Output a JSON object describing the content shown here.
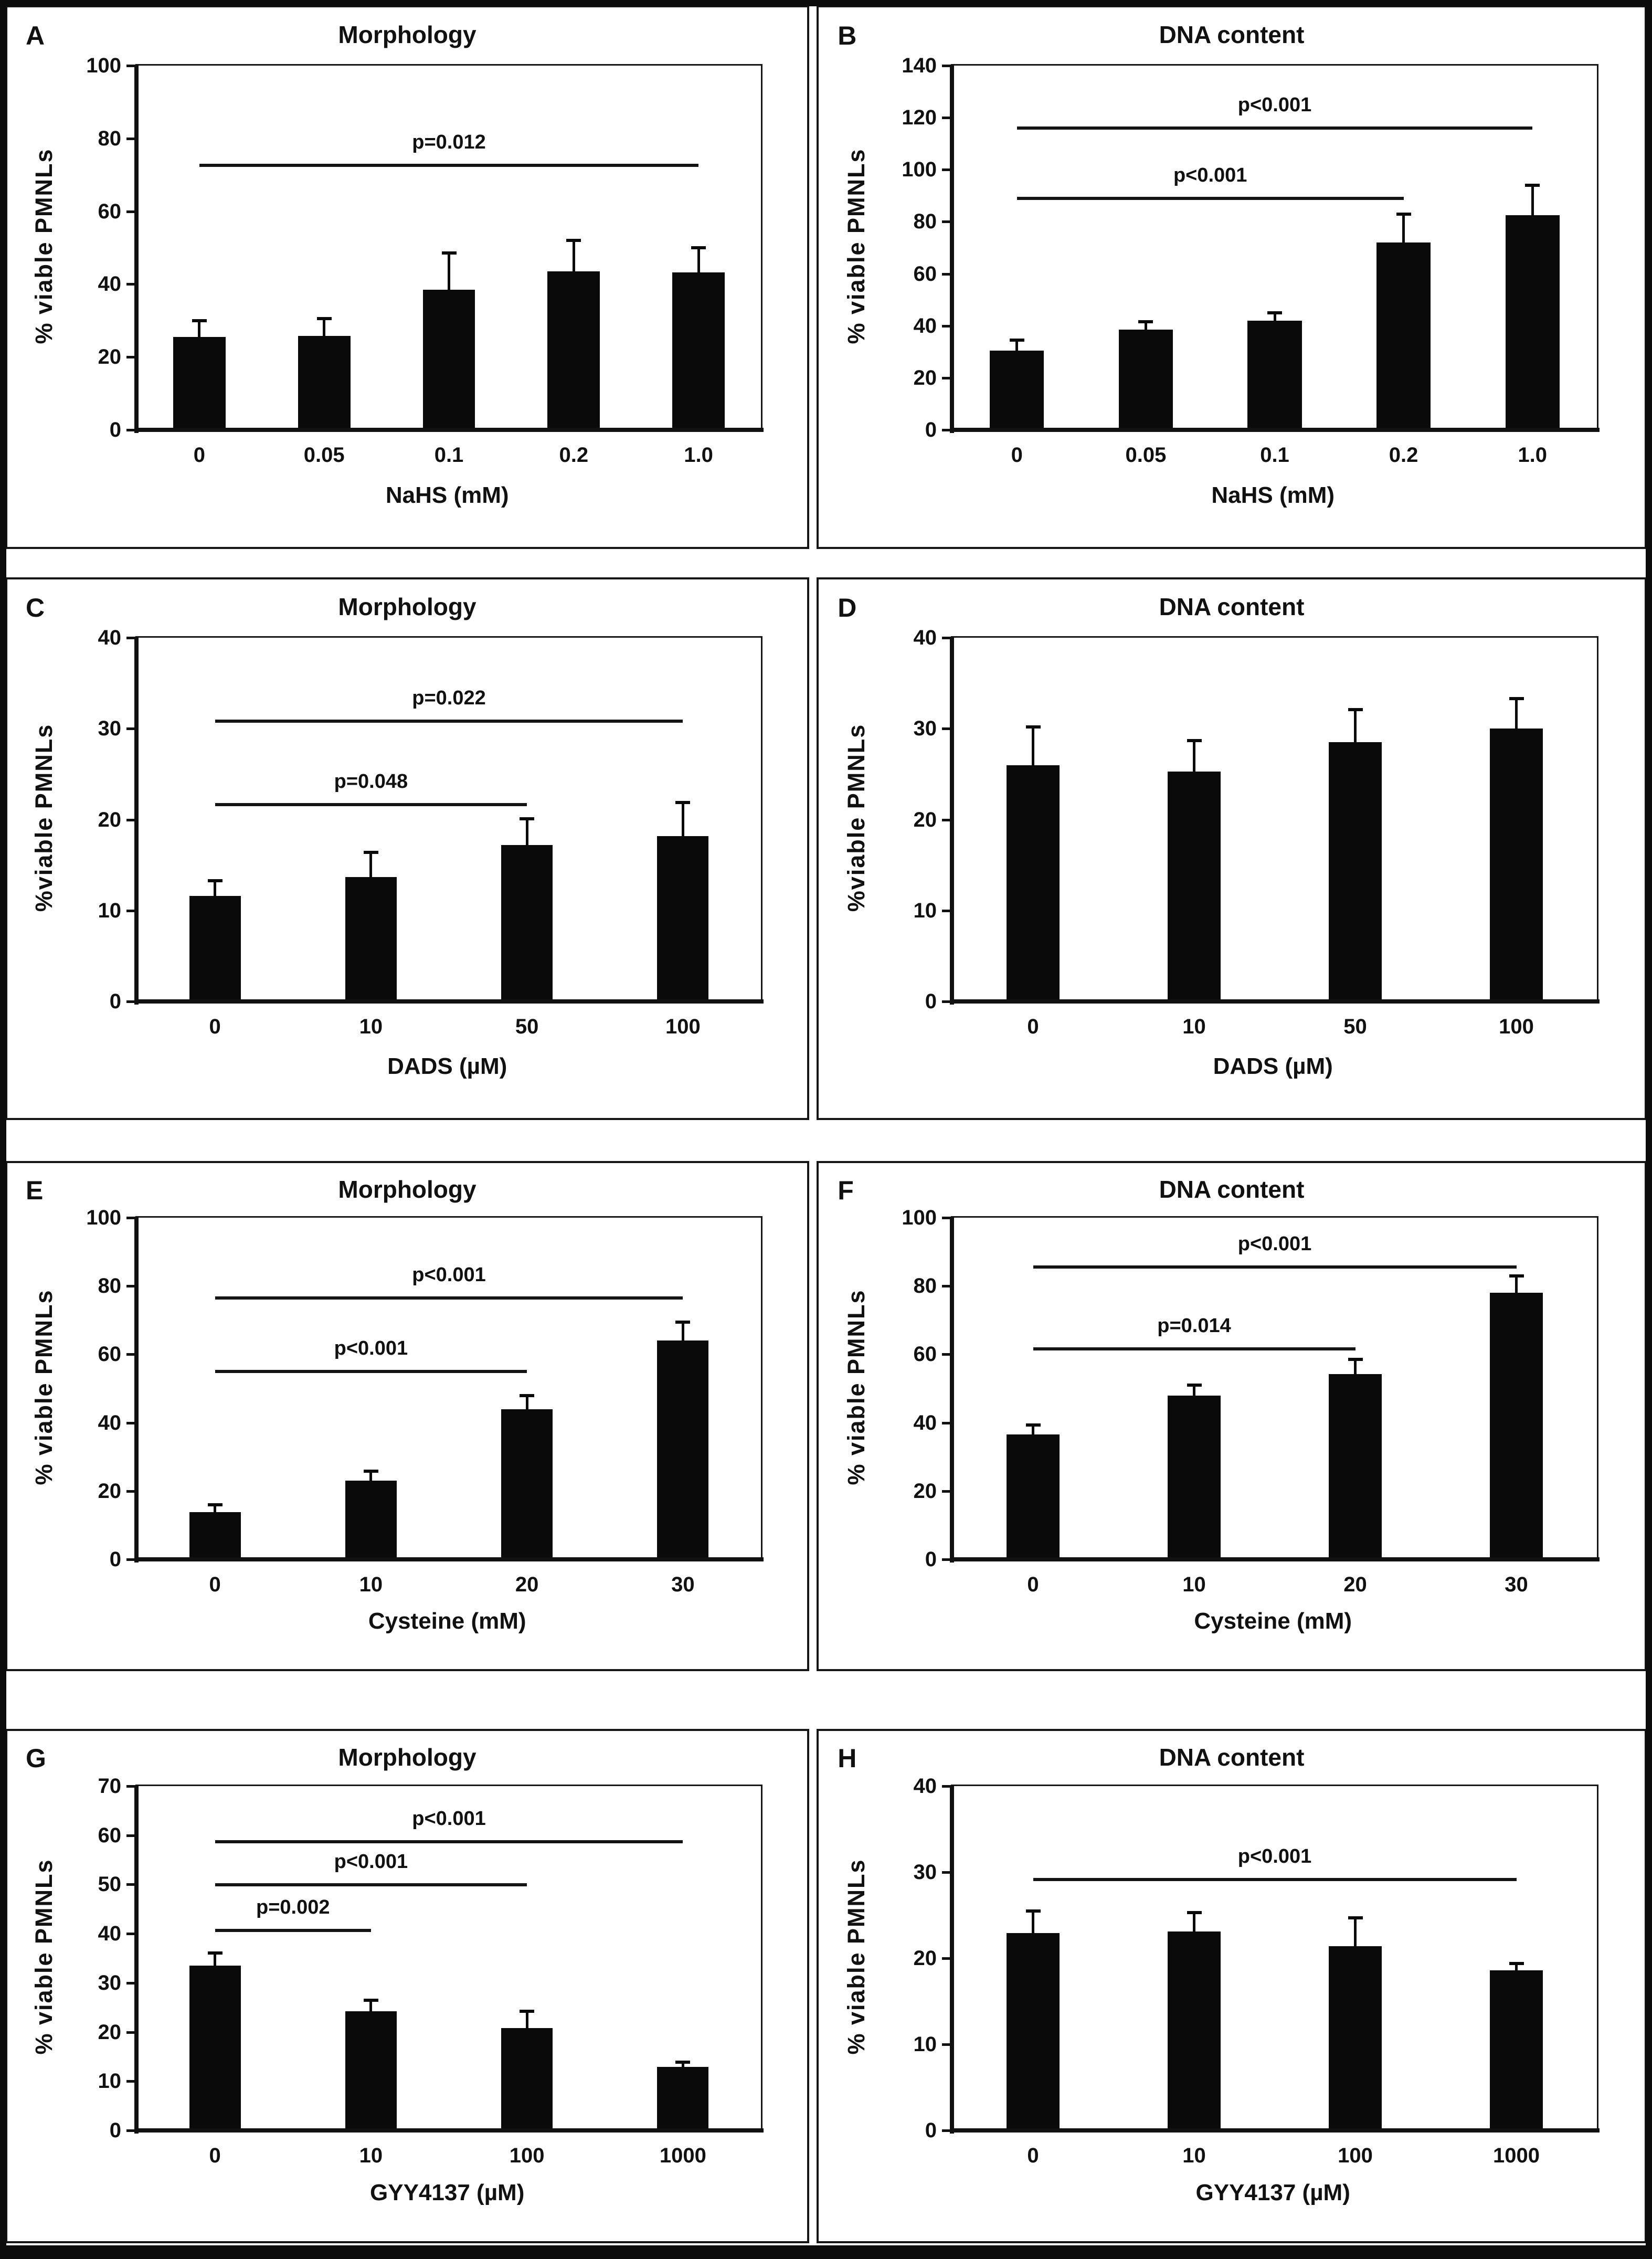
{
  "figure": {
    "description": "Eight-panel bar figure (A-H): % viable PMNLs by Morphology and DNA content assays",
    "bar_color": "#0a0a0a",
    "axis_color": "#111111"
  },
  "chart_data": [
    {
      "type": "bar",
      "id": "A",
      "title": "Morphology",
      "ylabel": "% viable PMNLs",
      "xlabel": "NaHS (mM)",
      "ylim": [
        0,
        100
      ],
      "ystep": 20,
      "grid": false,
      "legend": "none",
      "categories": [
        "0",
        "0.05",
        "0.1",
        "0.2",
        "1.0"
      ],
      "values": [
        25.5,
        25.8,
        38.5,
        43.5,
        43.2
      ],
      "errors": [
        4.5,
        4.8,
        10,
        8.5,
        6.8
      ],
      "sig_lines": [
        {
          "label": "p=0.012",
          "y": 73,
          "from": 0,
          "to": 4
        }
      ]
    },
    {
      "type": "bar",
      "id": "B",
      "title": "DNA content",
      "ylabel": "% viable PMNLs",
      "xlabel": "NaHS (mM)",
      "ylim": [
        0,
        140
      ],
      "ystep": 20,
      "grid": false,
      "legend": "none",
      "categories": [
        "0",
        "0.05",
        "0.1",
        "0.2",
        "1.0"
      ],
      "values": [
        30.5,
        38.5,
        42,
        72,
        82.5
      ],
      "errors": [
        4,
        3,
        3,
        11,
        11.5
      ],
      "sig_lines": [
        {
          "label": "p<0.001",
          "y": 116.5,
          "from": 0,
          "to": 4
        },
        {
          "label": "p<0.001",
          "y": 89.5,
          "from": 0,
          "to": 3
        }
      ]
    },
    {
      "type": "bar",
      "id": "C",
      "title": "Morphology",
      "ylabel": "%viable PMNLs",
      "xlabel": "DADS (µM)",
      "ylim": [
        0,
        40
      ],
      "ystep": 10,
      "grid": false,
      "legend": "none",
      "categories": [
        "0",
        "10",
        "50",
        "100"
      ],
      "values": [
        11.6,
        13.7,
        17.2,
        18.2
      ],
      "errors": [
        1.7,
        2.7,
        2.9,
        3.7
      ],
      "sig_lines": [
        {
          "label": "p=0.022",
          "y": 31,
          "from": 0,
          "to": 3
        },
        {
          "label": "p=0.048",
          "y": 21.8,
          "from": 0,
          "to": 2
        }
      ]
    },
    {
      "type": "bar",
      "id": "D",
      "title": "DNA content",
      "ylabel": "%viable PMNLs",
      "xlabel": "DADS (µM)",
      "ylim": [
        0,
        40
      ],
      "ystep": 10,
      "grid": false,
      "legend": "none",
      "categories": [
        "0",
        "10",
        "50",
        "100"
      ],
      "values": [
        26,
        25.3,
        28.5,
        30
      ],
      "errors": [
        4.2,
        3.4,
        3.6,
        3.3
      ],
      "sig_lines": []
    },
    {
      "type": "bar",
      "id": "E",
      "title": "Morphology",
      "ylabel": "% viable PMNLs",
      "xlabel": "Cysteine (mM)",
      "ylim": [
        0,
        100
      ],
      "ystep": 20,
      "grid": false,
      "legend": "none",
      "categories": [
        "0",
        "10",
        "20",
        "30"
      ],
      "values": [
        13.8,
        23,
        44,
        64
      ],
      "errors": [
        2.2,
        2.8,
        4,
        5.5
      ],
      "sig_lines": [
        {
          "label": "p<0.001",
          "y": 77,
          "from": 0,
          "to": 3
        },
        {
          "label": "p<0.001",
          "y": 55.5,
          "from": 0,
          "to": 2
        }
      ]
    },
    {
      "type": "bar",
      "id": "F",
      "title": "DNA content",
      "ylabel": "% viable PMNLs",
      "xlabel": "Cysteine (mM)",
      "ylim": [
        0,
        100
      ],
      "ystep": 20,
      "grid": false,
      "legend": "none",
      "categories": [
        "0",
        "10",
        "20",
        "30"
      ],
      "values": [
        36.5,
        48,
        54.3,
        78
      ],
      "errors": [
        2.8,
        3,
        4.2,
        5
      ],
      "sig_lines": [
        {
          "label": "p<0.001",
          "y": 86,
          "from": 0,
          "to": 3
        },
        {
          "label": "p=0.014",
          "y": 62,
          "from": 0,
          "to": 2
        }
      ]
    },
    {
      "type": "bar",
      "id": "G",
      "title": "Morphology",
      "ylabel": "% viable PMNLs",
      "xlabel": "GYY4137 (µM)",
      "ylim": [
        0,
        70
      ],
      "ystep": 10,
      "grid": false,
      "legend": "none",
      "categories": [
        "0",
        "10",
        "100",
        "1000"
      ],
      "values": [
        33.5,
        24.2,
        20.8,
        12.9
      ],
      "errors": [
        2.6,
        2.3,
        3.4,
        1.0
      ],
      "sig_lines": [
        {
          "label": "p<0.001",
          "y": 59,
          "from": 0,
          "to": 3
        },
        {
          "label": "p<0.001",
          "y": 50.3,
          "from": 0,
          "to": 2
        },
        {
          "label": "p=0.002",
          "y": 41,
          "from": 0,
          "to": 1
        }
      ]
    },
    {
      "type": "bar",
      "id": "H",
      "title": "DNA content",
      "ylabel": "% viable PMNLs",
      "xlabel": "GYY4137 (µM)",
      "ylim": [
        0,
        40
      ],
      "ystep": 10,
      "grid": false,
      "legend": "none",
      "categories": [
        "0",
        "10",
        "100",
        "1000"
      ],
      "values": [
        22.9,
        23.1,
        21.4,
        18.6
      ],
      "errors": [
        2.6,
        2.2,
        3.3,
        0.8
      ],
      "sig_lines": [
        {
          "label": "p<0.001",
          "y": 29.3,
          "from": 0,
          "to": 3
        }
      ]
    }
  ]
}
